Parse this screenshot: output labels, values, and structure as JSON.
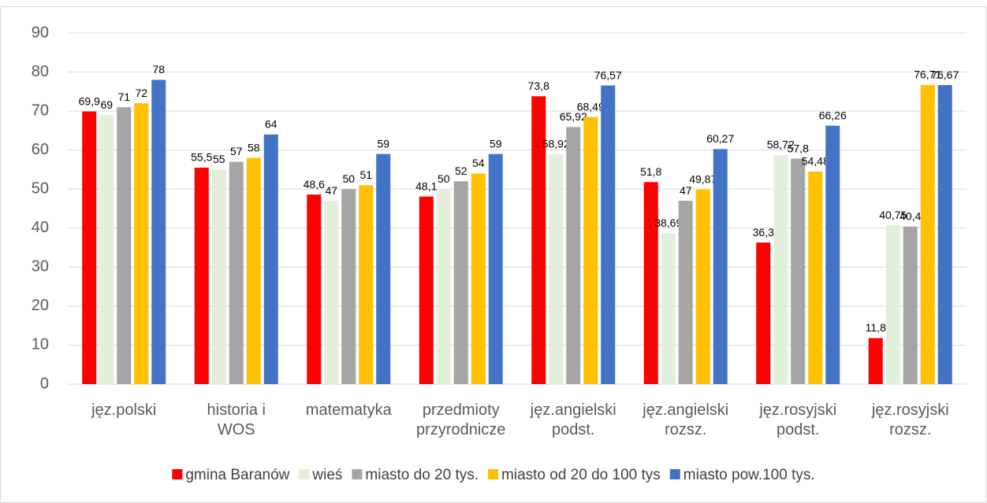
{
  "chart_data": {
    "type": "bar",
    "categories": [
      "jęz.polski",
      "historia i\nWOS",
      "matematyka",
      "przedmioty\nprzyrodnicze",
      "jęz.angielski\npodst.",
      "jęz.angielski\nrozsz.",
      "jęz.rosyjski\npodst.",
      "jęz.rosyjski\nrozsz."
    ],
    "series": [
      {
        "name": "gmina Baranów",
        "color": "#ff0000",
        "values": [
          69.9,
          55.5,
          48.6,
          48.1,
          73.8,
          51.8,
          36.3,
          11.8
        ],
        "value_labels": [
          "69,9",
          "55,5",
          "48,6",
          "48,1",
          "73,8",
          "51,8",
          "36,3",
          "11,8"
        ]
      },
      {
        "name": "wieś",
        "color": "#e2efda",
        "values": [
          69,
          55,
          47,
          50,
          58.92,
          38.69,
          58.72,
          40.75
        ],
        "value_labels": [
          "69",
          "55",
          "47",
          "50",
          "58,92",
          "38,69",
          "58,72",
          "40,75"
        ]
      },
      {
        "name": "miasto do 20 tys.",
        "color": "#a5a5a5",
        "values": [
          71,
          57,
          50,
          52,
          65.92,
          47,
          57.8,
          40.4
        ],
        "value_labels": [
          "71",
          "57",
          "50",
          "52",
          "65,92",
          "47",
          "57,8",
          "40,4"
        ]
      },
      {
        "name": "miasto od 20 do 100 tys",
        "color": "#ffc000",
        "values": [
          72,
          58,
          51,
          54,
          68.49,
          49.87,
          54.48,
          76.71
        ],
        "value_labels": [
          "72",
          "58",
          "51",
          "54",
          "68,49",
          "49,87",
          "54,48",
          "76,71"
        ]
      },
      {
        "name": "miasto pow.100 tys.",
        "color": "#4472c4",
        "values": [
          78,
          64,
          59,
          59,
          76.57,
          60.27,
          66.26,
          76.67
        ],
        "value_labels": [
          "78",
          "64",
          "59",
          "59",
          "76,57",
          "60,27",
          "66,26",
          "76,67"
        ]
      }
    ],
    "ylim": [
      0,
      90
    ],
    "yticks": [
      0,
      10,
      20,
      30,
      40,
      50,
      60,
      70,
      80,
      90
    ],
    "grid": true,
    "legend": "bottom"
  }
}
